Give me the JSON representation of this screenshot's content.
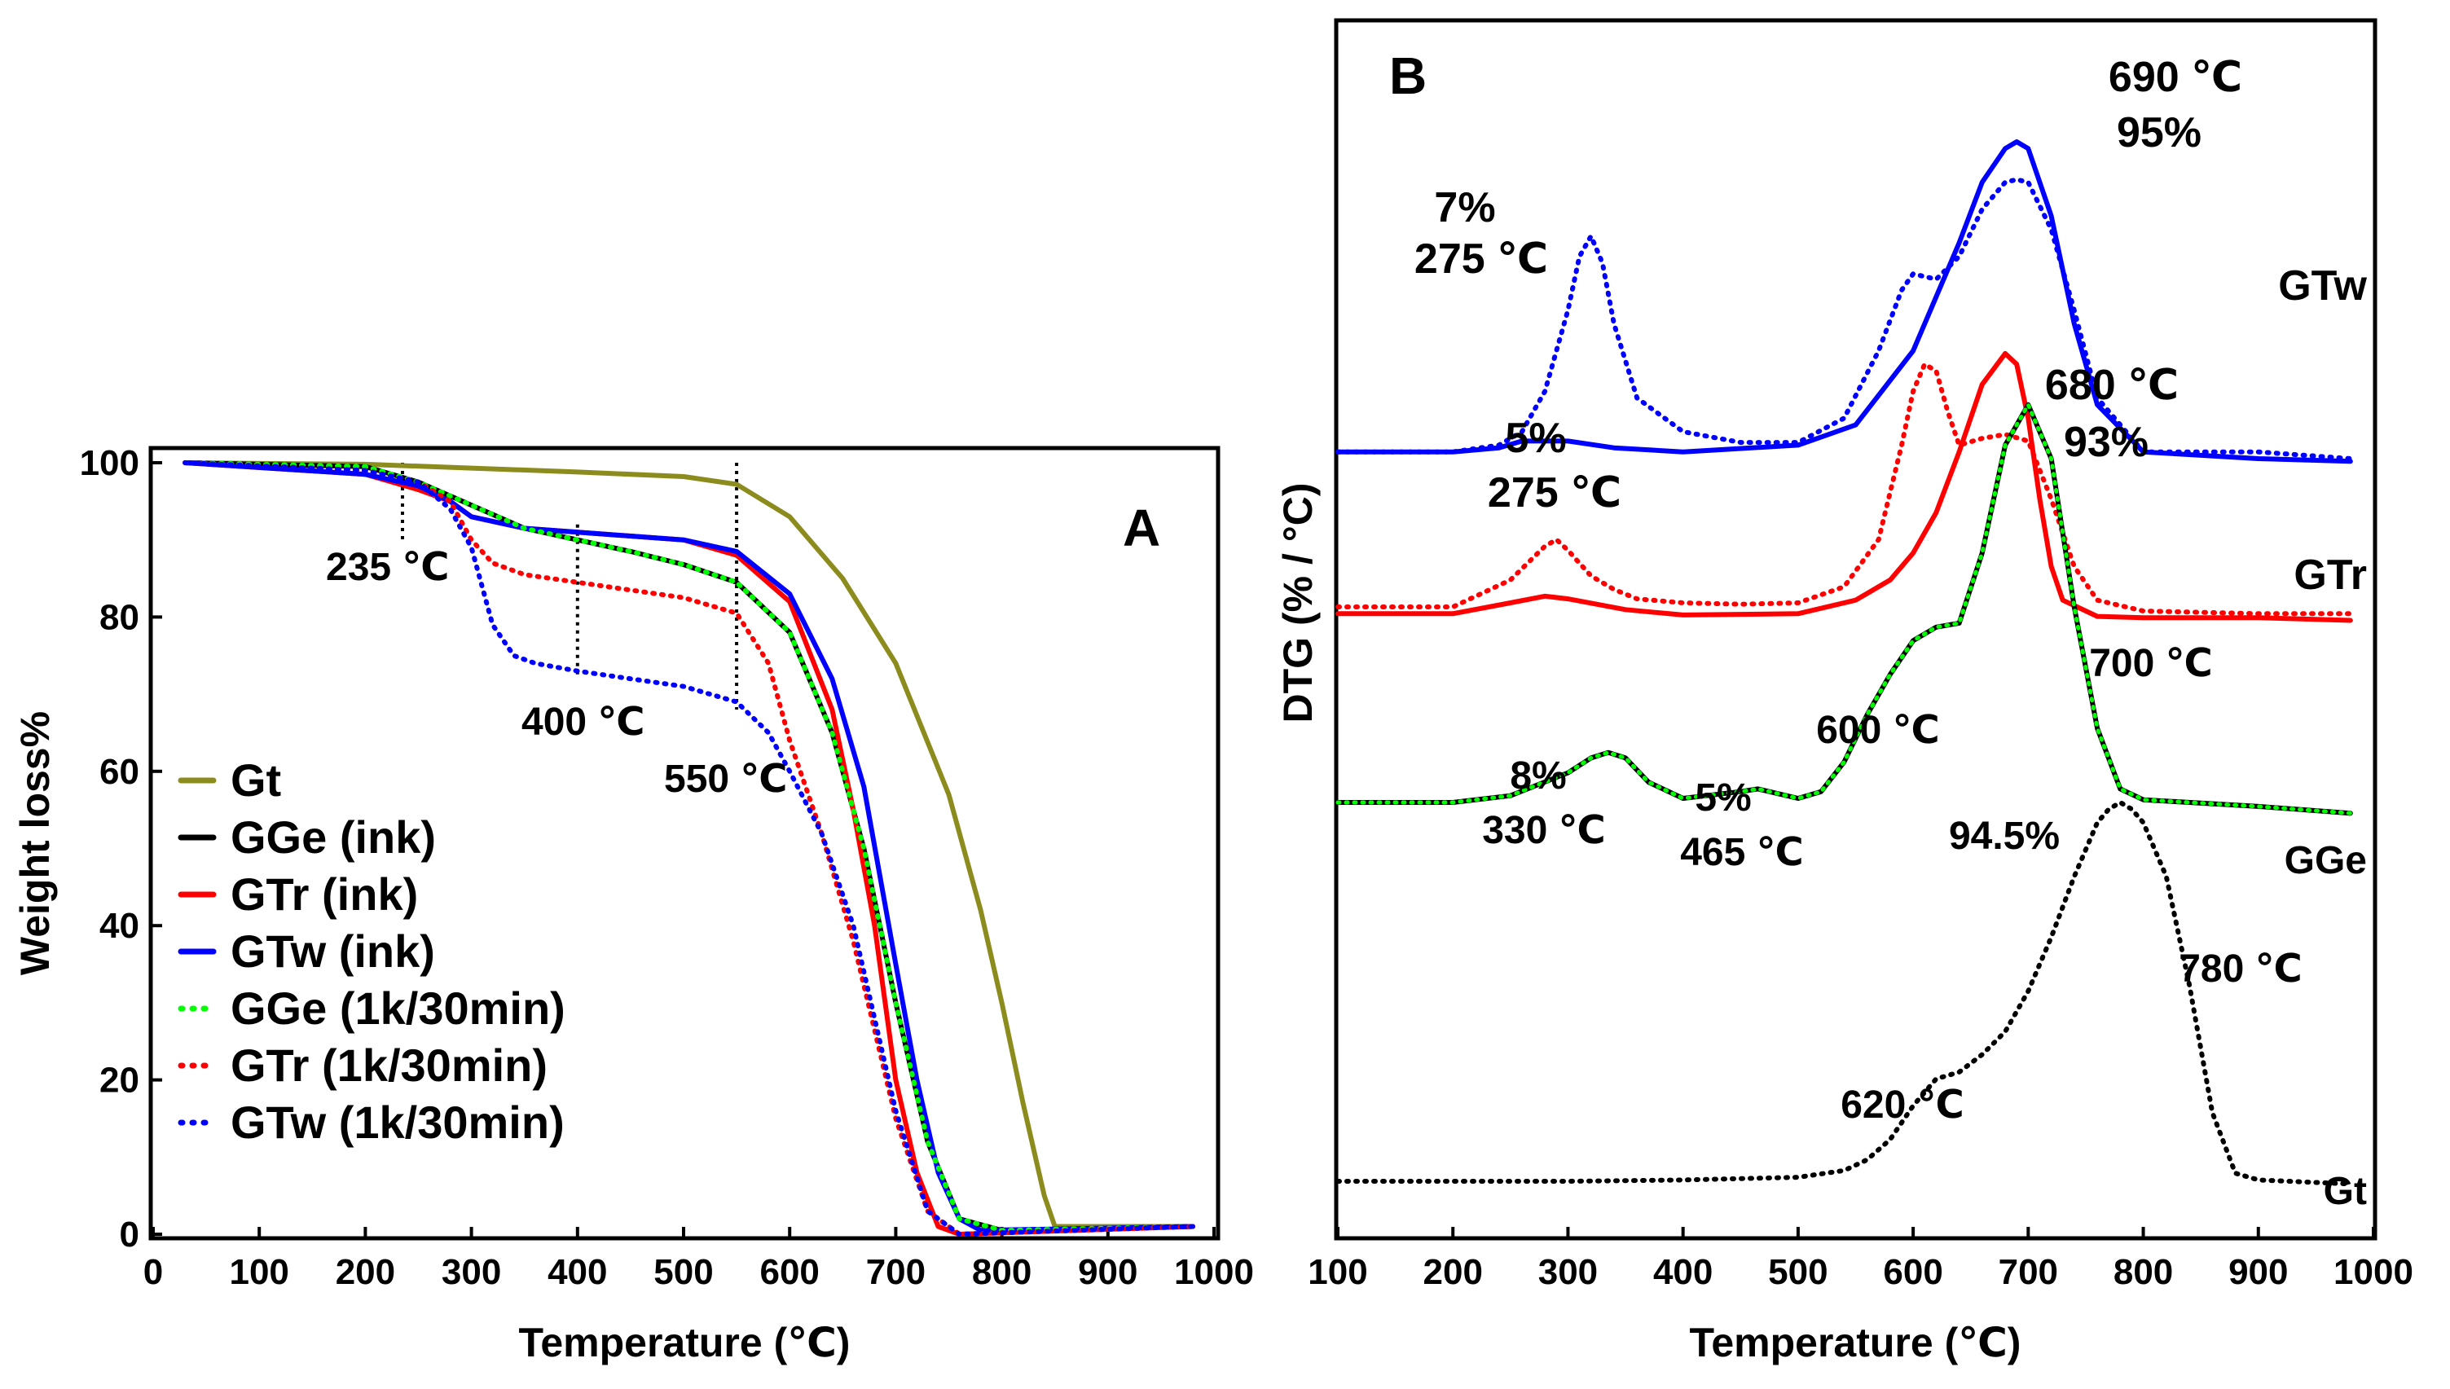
{
  "chart_data": [
    {
      "panel": "A",
      "type": "line",
      "title": "",
      "xlabel": "Temperature (℃)",
      "ylabel": "Weight loss%",
      "xlim": [
        0,
        1000
      ],
      "ylim": [
        0,
        100
      ],
      "xticks": [
        0,
        100,
        200,
        300,
        400,
        500,
        600,
        700,
        800,
        900,
        1000
      ],
      "yticks": [
        0,
        20,
        40,
        60,
        80,
        100
      ],
      "legend_position": "left-center",
      "series": [
        {
          "name": "Gt",
          "style": "solid",
          "color": "#8c8c1e",
          "x": [
            30,
            200,
            300,
            400,
            500,
            550,
            600,
            650,
            700,
            750,
            780,
            800,
            820,
            840,
            850,
            900,
            980
          ],
          "y": [
            100,
            99.8,
            99.3,
            98.8,
            98.2,
            97.2,
            93,
            85,
            74,
            57,
            42,
            30,
            17,
            5,
            1,
            1,
            1
          ]
        },
        {
          "name": "GGe (ink)",
          "style": "solid",
          "color": "#000000",
          "x": [
            30,
            200,
            250,
            300,
            350,
            400,
            450,
            500,
            550,
            600,
            640,
            670,
            700,
            730,
            760,
            800,
            980
          ],
          "y": [
            100,
            99.5,
            97.5,
            94.5,
            91.5,
            90,
            88.5,
            86.8,
            84.5,
            78,
            65,
            50,
            30,
            12,
            2,
            0.5,
            1
          ]
        },
        {
          "name": "GTr (ink)",
          "style": "solid",
          "color": "#ff0000",
          "x": [
            30,
            200,
            250,
            280,
            300,
            350,
            400,
            450,
            500,
            550,
            600,
            640,
            660,
            680,
            700,
            720,
            740,
            760,
            980
          ],
          "y": [
            100,
            98.5,
            96.5,
            95,
            93,
            91.5,
            91,
            90.5,
            90,
            88,
            82,
            68,
            55,
            40,
            20,
            8,
            1,
            0,
            1
          ]
        },
        {
          "name": "GTw (ink)",
          "style": "solid",
          "color": "#0000ff",
          "x": [
            30,
            200,
            250,
            280,
            300,
            350,
            400,
            450,
            500,
            550,
            600,
            640,
            670,
            700,
            720,
            740,
            760,
            780,
            980
          ],
          "y": [
            100,
            98.5,
            97,
            95,
            93,
            91.5,
            91,
            90.5,
            90,
            88.5,
            83,
            72,
            58,
            35,
            20,
            8,
            2,
            0.5,
            1
          ]
        },
        {
          "name": "GGe (1k/30min)",
          "style": "dotted",
          "color": "#00ff00",
          "x": [
            30,
            200,
            250,
            300,
            350,
            400,
            450,
            500,
            550,
            600,
            640,
            670,
            700,
            730,
            760,
            800,
            980
          ],
          "y": [
            100,
            99.5,
            97.5,
            94.5,
            91.5,
            90,
            88.5,
            86.8,
            84.5,
            78,
            65,
            50,
            30,
            12,
            2,
            0.5,
            1
          ]
        },
        {
          "name": "GTr (1k/30min)",
          "style": "dotted",
          "color": "#ff0000",
          "x": [
            30,
            200,
            250,
            280,
            300,
            320,
            350,
            400,
            450,
            500,
            550,
            580,
            600,
            630,
            660,
            700,
            730,
            760,
            980
          ],
          "y": [
            100,
            99,
            97.5,
            95,
            90,
            87,
            85.5,
            84.5,
            83.5,
            82.5,
            80.5,
            74,
            64,
            52,
            38,
            15,
            3,
            0,
            1
          ]
        },
        {
          "name": "GTw (1k/30min)",
          "style": "dotted",
          "color": "#0000ff",
          "x": [
            30,
            200,
            250,
            280,
            300,
            310,
            320,
            340,
            360,
            400,
            450,
            500,
            550,
            580,
            600,
            630,
            660,
            700,
            730,
            760,
            980
          ],
          "y": [
            100,
            99,
            97.5,
            94,
            89,
            84,
            79,
            75,
            74,
            73,
            72,
            71,
            69,
            65,
            60,
            52,
            40,
            16,
            3,
            0,
            1
          ]
        }
      ],
      "annotations": [
        {
          "text": "235 ℃",
          "x": 235
        },
        {
          "text": "400 ℃",
          "x": 400
        },
        {
          "text": "550 ℃",
          "x": 550
        }
      ]
    },
    {
      "panel": "B",
      "type": "line",
      "title": "",
      "xlabel": "Temperature (℃)",
      "ylabel": "DTG (% / °C)",
      "xlim": [
        100,
        1000
      ],
      "xticks": [
        100,
        200,
        300,
        400,
        500,
        600,
        700,
        800,
        900,
        1000
      ],
      "yticks": [],
      "series": [
        {
          "name": "GTw",
          "color": "#0000ff",
          "solid": {
            "x": [
              100,
              200,
              240,
              260,
              300,
              340,
              400,
              500,
              550,
              600,
              640,
              660,
              680,
              690,
              700,
              720,
              740,
              760,
              800,
              900,
              980
            ],
            "y": [
              11.5,
              11.5,
              11.8,
              12.3,
              12.3,
              11.8,
              11.5,
              12,
              13.5,
              19,
              27,
              31.5,
              34,
              34.5,
              34,
              29,
              21,
              15,
              11.5,
              11,
              10.8
            ]
          },
          "dotted": {
            "x": [
              100,
              200,
              240,
              260,
              280,
              300,
              310,
              320,
              330,
              340,
              360,
              400,
              450,
              500,
              540,
              570,
              590,
              600,
              620,
              640,
              660,
              680,
              690,
              700,
              720,
              740,
              760,
              800,
              900,
              980
            ],
            "y": [
              11.5,
              11.5,
              12,
              13,
              16,
              22,
              26,
              27.5,
              25.5,
              21,
              15.5,
              13,
              12.2,
              12.2,
              14,
              19,
              23.5,
              24.7,
              24.3,
              26,
              29.5,
              31.5,
              31.7,
              31.5,
              28,
              22,
              15.5,
              11.5,
              11.5,
              11
            ]
          }
        },
        {
          "name": "GTr",
          "color": "#ff0000",
          "solid": {
            "x": [
              100,
              200,
              250,
              280,
              300,
              350,
              400,
              500,
              550,
              580,
              600,
              620,
              640,
              660,
              680,
              690,
              700,
              710,
              720,
              730,
              760,
              800,
              900,
              980
            ],
            "y": [
              -0.5,
              -0.5,
              0.3,
              0.8,
              0.6,
              -0.2,
              -0.6,
              -0.5,
              0.5,
              2,
              4,
              7,
              11.5,
              16.5,
              18.8,
              18,
              14,
              8,
              3,
              0.5,
              -0.7,
              -0.8,
              -0.8,
              -1
            ]
          },
          "dotted": {
            "x": [
              100,
              200,
              250,
              280,
              290,
              300,
              320,
              340,
              360,
              400,
              450,
              500,
              540,
              570,
              590,
              600,
              610,
              620,
              630,
              640,
              660,
              680,
              700,
              720,
              740,
              760,
              800,
              900,
              980
            ],
            "y": [
              0,
              0,
              2,
              4.5,
              5,
              4.2,
              2.3,
              1.3,
              0.6,
              0.3,
              0.2,
              0.3,
              1.5,
              5,
              12,
              16,
              18,
              17.5,
              14.5,
              12,
              12.5,
              12.8,
              12.3,
              8,
              3,
              0.5,
              -0.3,
              -0.5,
              -0.5
            ]
          }
        },
        {
          "name": "GGe",
          "color": "#000000",
          "overlay_color": "#00ff00",
          "solid": {
            "x": [
              100,
              200,
              250,
              300,
              320,
              335,
              350,
              370,
              400,
              450,
              465,
              500,
              520,
              540,
              560,
              580,
              600,
              620,
              640,
              660,
              680,
              700,
              720,
              740,
              760,
              780,
              800,
              900,
              980
            ],
            "y": [
              -14.5,
              -14.5,
              -14,
              -12.3,
              -11.2,
              -10.8,
              -11.2,
              -13,
              -14.2,
              -13.7,
              -13.5,
              -14.2,
              -13.7,
              -11.5,
              -8,
              -5,
              -2.5,
              -1.5,
              -1.2,
              4,
              12,
              15,
              11,
              0,
              -9,
              -13.5,
              -14.3,
              -14.8,
              -15.3
            ]
          }
        },
        {
          "name": "Gt",
          "color": "#000000",
          "dotted": {
            "x": [
              100,
              200,
              300,
              400,
              500,
              540,
              560,
              580,
              600,
              620,
              640,
              660,
              680,
              700,
              720,
              740,
              760,
              770,
              780,
              790,
              800,
              820,
              840,
              860,
              880,
              900,
              980
            ],
            "y": [
              -42.6,
              -42.6,
              -42.6,
              -42.5,
              -42.3,
              -41.8,
              -41,
              -39.5,
              -37,
              -35,
              -34.5,
              -33.2,
              -31.5,
              -28.5,
              -24.5,
              -20,
              -16,
              -15,
              -14.5,
              -15,
              -16,
              -20,
              -28,
              -37.5,
              -42,
              -42.5,
              -42.8
            ]
          }
        }
      ],
      "annotations": [
        {
          "series": "GTw",
          "text": "7%",
          "color": "#0000ff"
        },
        {
          "series": "GTw",
          "text": "275  ℃",
          "color": "#0000ff"
        },
        {
          "series": "GTw",
          "text": "690 ℃",
          "color": "#0000ff"
        },
        {
          "series": "GTw",
          "text": "95%",
          "color": "#0000ff"
        },
        {
          "series": "GTr",
          "text": "5%",
          "color": "#ff0000"
        },
        {
          "series": "GTr",
          "text": "275  ℃",
          "color": "#ff0000"
        },
        {
          "series": "GTr",
          "text": "680 ℃",
          "color": "#ff0000"
        },
        {
          "series": "GTr",
          "text": "93%",
          "color": "#ff0000"
        },
        {
          "series": "GGe",
          "text": "8%",
          "color": "#000000"
        },
        {
          "series": "GGe",
          "text": "330 ℃",
          "color": "#000000"
        },
        {
          "series": "GGe",
          "text": "5%",
          "color": "#000000"
        },
        {
          "series": "GGe",
          "text": "465 ℃",
          "color": "#000000"
        },
        {
          "series": "GGe",
          "text": "600 ℃",
          "color": "#000000"
        },
        {
          "series": "GGe",
          "text": "700 ℃",
          "color": "#000000"
        },
        {
          "series": "GGe",
          "text": "94.5%",
          "color": "#000000"
        },
        {
          "series": "Gt",
          "text": "620 ℃",
          "color": "#000000"
        },
        {
          "series": "Gt",
          "text": "780 ℃",
          "color": "#000000"
        }
      ]
    }
  ]
}
